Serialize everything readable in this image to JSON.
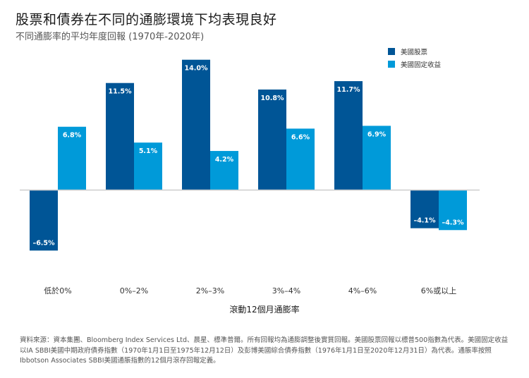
{
  "title": "股票和債券在不同的通膨環境下均表現良好",
  "subtitle": "不同通膨率的平均年度回報 (1970年-2020年)",
  "chart_data": {
    "type": "bar",
    "categories": [
      "低於0%",
      "0%–2%",
      "2%–3%",
      "3%–4%",
      "4%–6%",
      "6%或以上"
    ],
    "series": [
      {
        "name": "美國股票",
        "color": "#005596",
        "values": [
          -6.5,
          11.5,
          14.0,
          10.8,
          11.7,
          -4.1
        ],
        "labels": [
          "–6.5%",
          "11.5%",
          "14.0%",
          "10.8%",
          "11.7%",
          "–4.1%"
        ]
      },
      {
        "name": "美國固定收益",
        "color": "#009ad9",
        "values": [
          6.8,
          5.1,
          4.2,
          6.6,
          6.9,
          -4.3
        ],
        "labels": [
          "6.8%",
          "5.1%",
          "4.2%",
          "6.6%",
          "6.9%",
          "–4.3%"
        ]
      }
    ],
    "xlabel": "滾動12個月通膨率",
    "ylabel": "",
    "ylim": [
      -7.5,
      15
    ],
    "grid": false,
    "legend_position": "top-right"
  },
  "footnote": "資料來源：資本集團、Bloomberg Index Services Ltd、晨星、標準普爾。所有回報均為通膨調整後實質回報。美國股票回報以標普500指數為代表。美國固定收益以IA SBBI美國中期政府債券指數（1970年1月1日至1975年12月12日）及彭博美國綜合債券指數（1976年1月1日至2020年12月31日）為代表。通脹率按照Ibbotson Associates SBBI美國通脹指數的12個月滾存回報定義。"
}
